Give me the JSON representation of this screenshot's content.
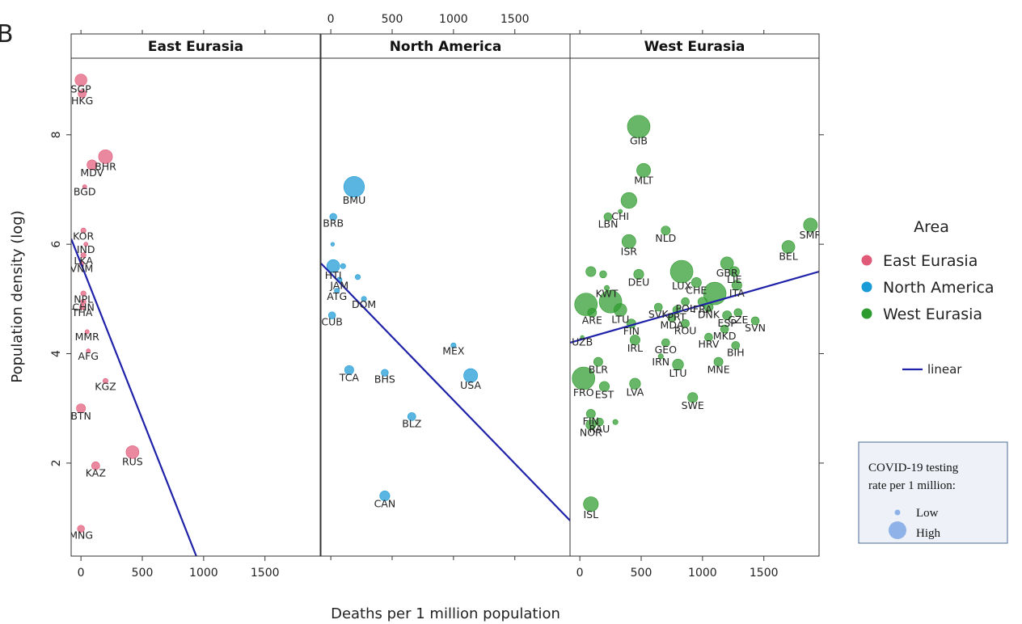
{
  "figure_letter": "B",
  "chart_data": {
    "type": "scatter",
    "xlabel": "Deaths per 1 million population",
    "ylabel": "Population density (log)",
    "xlim": [
      -80,
      1950
    ],
    "ylim": [
      0.3,
      9.4
    ],
    "xticks": [
      0,
      500,
      1000,
      1500
    ],
    "yticks": [
      2,
      4,
      6,
      8
    ],
    "fit": "linear",
    "legend": {
      "title": "Area",
      "placement": "right",
      "items": [
        {
          "label": "East Eurasia",
          "color": "#e05a78"
        },
        {
          "label": "North America",
          "color": "#1a9ad6"
        },
        {
          "label": "West Eurasia",
          "color": "#2e9b2e"
        }
      ],
      "line_label": "linear",
      "line_color": "#1f22a8"
    },
    "size_legend": {
      "title_line1": "COVID-19 testing",
      "title_line2": "rate per 1 million:",
      "low": "Low",
      "high": "High"
    },
    "panels": [
      {
        "title": "East Eurasia",
        "color": "#e05a78",
        "fit": {
          "x1": -80,
          "y1": 6.1,
          "x2": 940,
          "y2": 0.3
        },
        "points": [
          {
            "label": "SGP",
            "x": 0,
            "y": 9.0,
            "s": 0.45
          },
          {
            "label": "HKG",
            "x": 10,
            "y": 8.75,
            "s": 0.25
          },
          {
            "label": "BHR",
            "x": 200,
            "y": 7.6,
            "s": 0.55
          },
          {
            "label": "MDV",
            "x": 90,
            "y": 7.45,
            "s": 0.35
          },
          {
            "label": "BGD",
            "x": 30,
            "y": 7.05,
            "s": 0.05
          },
          {
            "label": "KOR",
            "x": 20,
            "y": 6.25,
            "s": 0.1
          },
          {
            "label": "IND",
            "x": 40,
            "y": 6.0,
            "s": 0.05
          },
          {
            "label": "LKA",
            "x": 20,
            "y": 5.8,
            "s": 0.1
          },
          {
            "label": "VNM",
            "x": 5,
            "y": 5.65,
            "s": 0.05
          },
          {
            "label": "NPL",
            "x": 20,
            "y": 5.1,
            "s": 0.1
          },
          {
            "label": "CHN",
            "x": 20,
            "y": 4.95,
            "s": 0.1
          },
          {
            "label": "THA",
            "x": 10,
            "y": 4.85,
            "s": 0.1
          },
          {
            "label": "MMR",
            "x": 50,
            "y": 4.4,
            "s": 0.05
          },
          {
            "label": "AFG",
            "x": 60,
            "y": 4.05,
            "s": 0.05
          },
          {
            "label": "KGZ",
            "x": 200,
            "y": 3.5,
            "s": 0.1
          },
          {
            "label": "BTN",
            "x": 0,
            "y": 3.0,
            "s": 0.3
          },
          {
            "label": "RUS",
            "x": 420,
            "y": 2.2,
            "s": 0.5
          },
          {
            "label": "KAZ",
            "x": 120,
            "y": 1.95,
            "s": 0.25
          },
          {
            "label": "MNG",
            "x": 0,
            "y": 0.8,
            "s": 0.2
          }
        ]
      },
      {
        "title": "North America",
        "color": "#1a9ad6",
        "fit": {
          "x1": -80,
          "y1": 5.65,
          "x2": 1950,
          "y2": 0.95
        },
        "points": [
          {
            "label": "BMU",
            "x": 190,
            "y": 7.05,
            "s": 0.9
          },
          {
            "label": "BRB",
            "x": 20,
            "y": 6.5,
            "s": 0.2
          },
          {
            "label": "",
            "x": 15,
            "y": 6.0,
            "s": 0.03
          },
          {
            "label": "HTI",
            "x": 20,
            "y": 5.6,
            "s": 0.5
          },
          {
            "label": "",
            "x": 100,
            "y": 5.6,
            "s": 0.1
          },
          {
            "label": "JAM",
            "x": 70,
            "y": 5.35,
            "s": 0.1
          },
          {
            "label": "",
            "x": 220,
            "y": 5.4,
            "s": 0.1
          },
          {
            "label": "ATG",
            "x": 50,
            "y": 5.15,
            "s": 0.1
          },
          {
            "label": "DOM",
            "x": 270,
            "y": 5.0,
            "s": 0.1
          },
          {
            "label": "CUB",
            "x": 10,
            "y": 4.7,
            "s": 0.2
          },
          {
            "label": "MEX",
            "x": 1000,
            "y": 4.15,
            "s": 0.1
          },
          {
            "label": "TCA",
            "x": 150,
            "y": 3.7,
            "s": 0.3
          },
          {
            "label": "BHS",
            "x": 440,
            "y": 3.65,
            "s": 0.2
          },
          {
            "label": "USA",
            "x": 1140,
            "y": 3.6,
            "s": 0.55
          },
          {
            "label": "BLZ",
            "x": 660,
            "y": 2.85,
            "s": 0.25
          },
          {
            "label": "CAN",
            "x": 440,
            "y": 1.4,
            "s": 0.35
          }
        ]
      },
      {
        "title": "West Eurasia",
        "color": "#2e9b2e",
        "fit": {
          "x1": -80,
          "y1": 4.2,
          "x2": 1950,
          "y2": 5.5
        },
        "points": [
          {
            "label": "GIB",
            "x": 480,
            "y": 8.15,
            "s": 1.0
          },
          {
            "label": "MLT",
            "x": 520,
            "y": 7.35,
            "s": 0.55
          },
          {
            "label": "",
            "x": 400,
            "y": 6.8,
            "s": 0.65
          },
          {
            "label": "CHI",
            "x": 330,
            "y": 6.6,
            "s": 0.05
          },
          {
            "label": "LBN",
            "x": 230,
            "y": 6.5,
            "s": 0.25
          },
          {
            "label": "NLD",
            "x": 700,
            "y": 6.25,
            "s": 0.3
          },
          {
            "label": "SMR",
            "x": 1880,
            "y": 6.35,
            "s": 0.55
          },
          {
            "label": "ISR",
            "x": 400,
            "y": 6.05,
            "s": 0.55
          },
          {
            "label": "BEL",
            "x": 1700,
            "y": 5.95,
            "s": 0.5
          },
          {
            "label": "GBR",
            "x": 1200,
            "y": 5.65,
            "s": 0.5
          },
          {
            "label": "LUX",
            "x": 830,
            "y": 5.5,
            "s": 1.0
          },
          {
            "label": "LIE",
            "x": 1260,
            "y": 5.5,
            "s": 0.35
          },
          {
            "label": "",
            "x": 90,
            "y": 5.5,
            "s": 0.35
          },
          {
            "label": "",
            "x": 190,
            "y": 5.45,
            "s": 0.2
          },
          {
            "label": "DEU",
            "x": 480,
            "y": 5.45,
            "s": 0.35
          },
          {
            "label": "KWT",
            "x": 220,
            "y": 5.2,
            "s": 0.1
          },
          {
            "label": "CHE",
            "x": 950,
            "y": 5.3,
            "s": 0.35
          },
          {
            "label": "ITA",
            "x": 1280,
            "y": 5.25,
            "s": 0.35
          },
          {
            "label": "",
            "x": 1100,
            "y": 5.1,
            "s": 1.0
          },
          {
            "label": "POL",
            "x": 860,
            "y": 4.95,
            "s": 0.25
          },
          {
            "label": "FRA",
            "x": 1000,
            "y": 4.95,
            "s": 0.3
          },
          {
            "label": "",
            "x": 50,
            "y": 4.9,
            "s": 1.0
          },
          {
            "label": "",
            "x": 250,
            "y": 4.95,
            "s": 1.0
          },
          {
            "label": "LTU",
            "x": 330,
            "y": 4.8,
            "s": 0.5
          },
          {
            "label": "SVK",
            "x": 640,
            "y": 4.85,
            "s": 0.25
          },
          {
            "label": "PRT",
            "x": 790,
            "y": 4.8,
            "s": 0.25
          },
          {
            "label": "ARE",
            "x": 100,
            "y": 4.75,
            "s": 0.3
          },
          {
            "label": "DNK",
            "x": 1050,
            "y": 4.85,
            "s": 0.3
          },
          {
            "label": "ESP",
            "x": 1200,
            "y": 4.7,
            "s": 0.3
          },
          {
            "label": "SVN",
            "x": 1430,
            "y": 4.6,
            "s": 0.25
          },
          {
            "label": "FIN",
            "x": 420,
            "y": 4.55,
            "s": 0.3
          },
          {
            "label": "MDA",
            "x": 750,
            "y": 4.65,
            "s": 0.25
          },
          {
            "label": "CZE",
            "x": 1290,
            "y": 4.75,
            "s": 0.25
          },
          {
            "label": "UZB",
            "x": 20,
            "y": 4.3,
            "s": 0.02
          },
          {
            "label": "IRL",
            "x": 450,
            "y": 4.25,
            "s": 0.35
          },
          {
            "label": "ROU",
            "x": 860,
            "y": 4.55,
            "s": 0.25
          },
          {
            "label": "MKD",
            "x": 1180,
            "y": 4.45,
            "s": 0.25
          },
          {
            "label": "HRV",
            "x": 1050,
            "y": 4.3,
            "s": 0.25
          },
          {
            "label": "GEO",
            "x": 700,
            "y": 4.2,
            "s": 0.25
          },
          {
            "label": "BIH",
            "x": 1270,
            "y": 4.15,
            "s": 0.25
          },
          {
            "label": "IRN",
            "x": 660,
            "y": 3.95,
            "s": 0.1
          },
          {
            "label": "MNE",
            "x": 1130,
            "y": 3.85,
            "s": 0.3
          },
          {
            "label": "LTU",
            "x": 800,
            "y": 3.8,
            "s": 0.4
          },
          {
            "label": "BLR",
            "x": 150,
            "y": 3.85,
            "s": 0.3
          },
          {
            "label": "FRO",
            "x": 30,
            "y": 3.55,
            "s": 1.0
          },
          {
            "label": "EST",
            "x": 200,
            "y": 3.4,
            "s": 0.35
          },
          {
            "label": "LVA",
            "x": 450,
            "y": 3.45,
            "s": 0.4
          },
          {
            "label": "SWE",
            "x": 920,
            "y": 3.2,
            "s": 0.35
          },
          {
            "label": "FIN",
            "x": 90,
            "y": 2.9,
            "s": 0.3
          },
          {
            "label": "RAU",
            "x": 160,
            "y": 2.75,
            "s": 0.25
          },
          {
            "label": "NOR",
            "x": 90,
            "y": 2.7,
            "s": 0.35
          },
          {
            "label": "",
            "x": 290,
            "y": 2.75,
            "s": 0.1
          },
          {
            "label": "ISL",
            "x": 90,
            "y": 1.25,
            "s": 0.6
          }
        ]
      }
    ]
  }
}
